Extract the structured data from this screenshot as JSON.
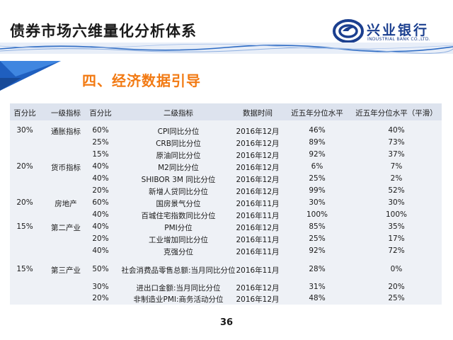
{
  "header": {
    "title": "债券市场六维量化分析体系",
    "logo_cn": "兴业银行",
    "logo_en": "INDUSTRIAL BANK CO.,LTD."
  },
  "section": {
    "heading": "四、经济数据引导"
  },
  "table": {
    "headers": [
      "百分比",
      "一级指标",
      "百分比",
      "二级指标",
      "数据时间",
      "近五年分位水平",
      "近五年分位水平（平滑）"
    ],
    "rows": [
      {
        "p1": "30%",
        "ind1": "通胀指标",
        "p2": "60%",
        "ind2": "CPI同比分位",
        "date": "2016年12月",
        "pct": "46%",
        "smooth": "40%"
      },
      {
        "p1": "",
        "ind1": "",
        "p2": "25%",
        "ind2": "CRB同比分位",
        "date": "2016年12月",
        "pct": "89%",
        "smooth": "73%"
      },
      {
        "p1": "",
        "ind1": "",
        "p2": "15%",
        "ind2": "原油同比分位",
        "date": "2016年12月",
        "pct": "92%",
        "smooth": "37%"
      },
      {
        "p1": "20%",
        "ind1": "货币指标",
        "p2": "40%",
        "ind2": "M2同比分位",
        "date": "2016年12月",
        "pct": "6%",
        "smooth": "7%"
      },
      {
        "p1": "",
        "ind1": "",
        "p2": "40%",
        "ind2": "SHIBOR 3M 同比分位",
        "date": "2016年12月",
        "pct": "25%",
        "smooth": "2%"
      },
      {
        "p1": "",
        "ind1": "",
        "p2": "20%",
        "ind2": "新增人贷同比分位",
        "date": "2016年12月",
        "pct": "99%",
        "smooth": "52%"
      },
      {
        "p1": "20%",
        "ind1": "房地产",
        "p2": "60%",
        "ind2": "国房景气分位",
        "date": "2016年11月",
        "pct": "30%",
        "smooth": "30%"
      },
      {
        "p1": "",
        "ind1": "",
        "p2": "40%",
        "ind2": "百城住宅指数同比分位",
        "date": "2016年11月",
        "pct": "100%",
        "smooth": "100%"
      },
      {
        "p1": "15%",
        "ind1": "第二产业",
        "p2": "40%",
        "ind2": "PMI分位",
        "date": "2016年12月",
        "pct": "85%",
        "smooth": "35%"
      },
      {
        "p1": "",
        "ind1": "",
        "p2": "20%",
        "ind2": "工业增加同比分位",
        "date": "2016年11月",
        "pct": "25%",
        "smooth": "17%"
      },
      {
        "p1": "",
        "ind1": "",
        "p2": "40%",
        "ind2": "克强分位",
        "date": "2016年11月",
        "pct": "92%",
        "smooth": "72%"
      },
      {
        "p1": "15%",
        "ind1": "第三产业",
        "p2": "50%",
        "ind2": "社会消费品零售总额:当月同比分位",
        "date": "2016年11月",
        "pct": "28%",
        "smooth": "0%"
      },
      {
        "p1": "",
        "ind1": "",
        "p2": "30%",
        "ind2": "进出口金额:当月同比分位",
        "date": "2016年12月",
        "pct": "31%",
        "smooth": "20%"
      },
      {
        "p1": "",
        "ind1": "",
        "p2": "20%",
        "ind2": "非制造业PMI:商务活动分位",
        "date": "2016年12月",
        "pct": "48%",
        "smooth": "25%"
      }
    ]
  },
  "footer": {
    "page_number": "36"
  },
  "colors": {
    "title": "#1a1a1a",
    "section_heading": "#f27a13",
    "brand_blue": "#1b3f8f",
    "table_bg": "#eef1f6",
    "header_bg": "#dde3ee"
  },
  "icons": {
    "logo": "industrial-bank-logo-icon",
    "decor": "blue-triangle-decoration"
  }
}
